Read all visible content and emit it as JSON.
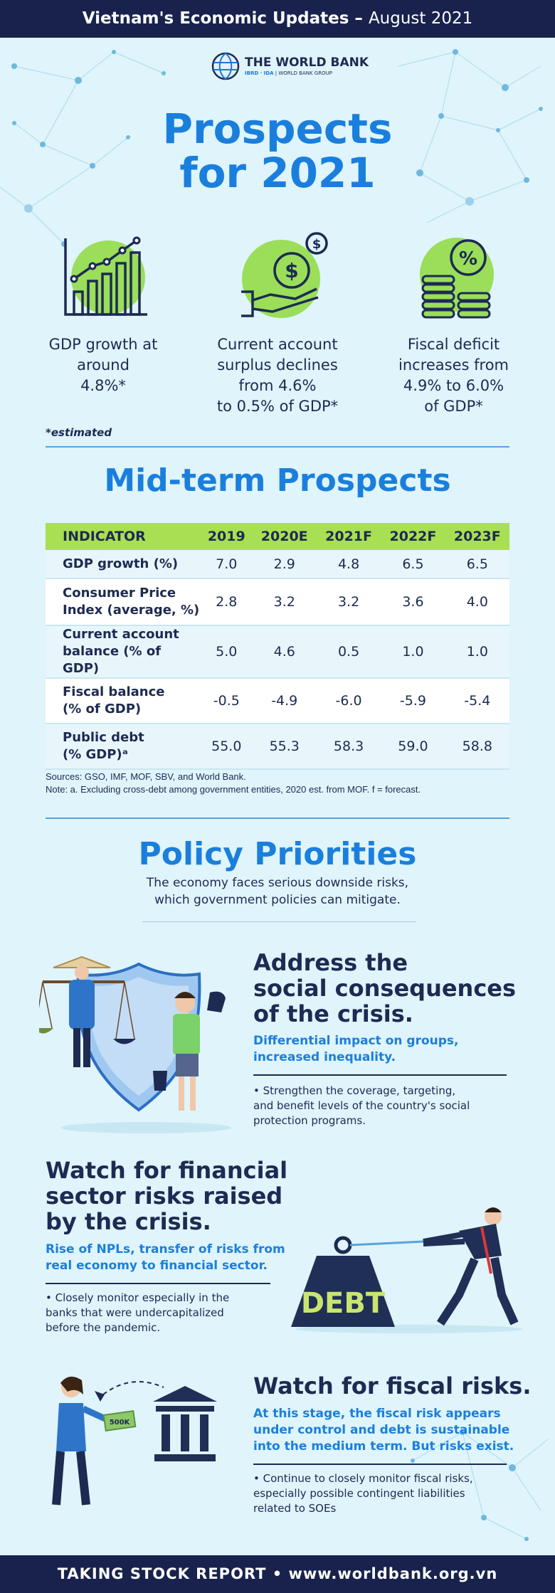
{
  "header": {
    "title_bold": "Vietnam's Economic Updates",
    "title_sep": " – ",
    "title_date": "August 2021"
  },
  "logo": {
    "name": "THE WORLD BANK",
    "ibrd": "IBRD · IDA",
    "group": "WORLD BANK GROUP"
  },
  "prospects": {
    "title_line1": "Prospects",
    "title_line2": "for 2021",
    "items": [
      {
        "icon": "bar-chart-growth-icon",
        "lines": [
          "GDP growth at",
          "around",
          "4.8%*"
        ]
      },
      {
        "icon": "hand-dollar-icon",
        "lines": [
          "Current account",
          "surplus declines",
          "from 4.6%",
          "to 0.5% of GDP*"
        ]
      },
      {
        "icon": "coins-percent-icon",
        "lines": [
          "Fiscal deficit",
          "increases from",
          "4.9% to 6.0%",
          "of GDP*"
        ]
      }
    ],
    "note": "*estimated"
  },
  "midterm": {
    "title": "Mid-term Prospects",
    "columns": [
      "INDICATOR",
      "2019",
      "2020E",
      "2021F",
      "2022F",
      "2023F"
    ],
    "rows": [
      {
        "label": [
          "GDP growth (%)"
        ],
        "values": [
          "7.0",
          "2.9",
          "4.8",
          "6.5",
          "6.5"
        ]
      },
      {
        "label": [
          "Consumer Price",
          "Index (average, %)"
        ],
        "values": [
          "2.8",
          "3.2",
          "3.2",
          "3.6",
          "4.0"
        ]
      },
      {
        "label": [
          "Current account",
          "balance (% of GDP)"
        ],
        "values": [
          "5.0",
          "4.6",
          "0.5",
          "1.0",
          "1.0"
        ]
      },
      {
        "label": [
          "Fiscal balance",
          "(% of GDP)"
        ],
        "values": [
          "-0.5",
          "-4.9",
          "-6.0",
          "-5.9",
          "-5.4"
        ]
      },
      {
        "label": [
          "Public debt",
          "(% GDP)ᵃ"
        ],
        "values": [
          "55.0",
          "55.3",
          "58.3",
          "59.0",
          "58.8"
        ]
      }
    ],
    "sources": "Sources: GSO, IMF, MOF, SBV, and World Bank.",
    "note": "Note: a. Excluding cross-debt among government entities, 2020 est. from MOF. f = forecast."
  },
  "policy": {
    "title": "Policy Priorities",
    "subtitle_line1": "The economy faces serious downside risks,",
    "subtitle_line2": "which government policies can mitigate.",
    "items": [
      {
        "title": [
          "Address the",
          "social consequences",
          "of the crisis."
        ],
        "highlight": [
          "Differential impact on groups,",
          "increased inequality."
        ],
        "body": [
          "• Strengthen the coverage, targeting,",
          "and benefit levels of the country's social",
          "protection programs."
        ]
      },
      {
        "title": [
          "Watch for financial",
          "sector risks raised",
          "by the crisis."
        ],
        "highlight": [
          "Rise of NPLs, transfer of risks from",
          "real economy to financial sector."
        ],
        "body": [
          "• Closely monitor especially in the",
          "banks that were undercapitalized",
          "before the pandemic."
        ],
        "weight_label": "DEBT"
      },
      {
        "title": [
          "Watch for fiscal risks."
        ],
        "highlight": [
          "At this stage, the fiscal risk appears",
          "under control and debt is sustainable",
          "into the medium term. But risks exist."
        ],
        "body": [
          "• Continue to closely monitor fiscal risks,",
          "especially possible contingent liabilities",
          "related to SOEs"
        ],
        "money_label": "500K"
      }
    ]
  },
  "footer": {
    "text": "TAKING STOCK REPORT • www.worldbank.org.vn"
  },
  "colors": {
    "navy": "#18224d",
    "blue": "#1a7fdc",
    "green": "#a9df52",
    "bg": "#dff4fb"
  }
}
